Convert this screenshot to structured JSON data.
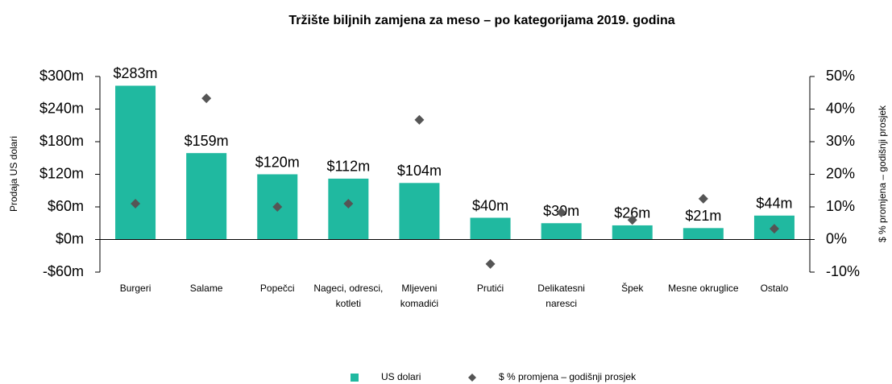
{
  "chart_data": {
    "type": "bar",
    "title": "Tržište biljnih zamjena za meso – po kategorijama 2019. godina",
    "ylabel": "Prodaja US dolari",
    "y2label": "$ % promjena – godišnji prosjek",
    "categories": [
      "Burgeri",
      "Salame",
      "Popečci",
      "Nageci, odresci, kotleti",
      "Mljeveni komadići",
      "Prutići",
      "Delikatesni naresci",
      "Špek",
      "Mesne okruglice",
      "Ostalo"
    ],
    "series": [
      {
        "name": "US dolari",
        "color": "#20b9a0",
        "values": [
          283,
          159,
          120,
          112,
          104,
          40,
          30,
          26,
          21,
          44
        ],
        "value_labels": [
          "$283m",
          "$159m",
          "$120m",
          "$112m",
          "$104m",
          "$40m",
          "$30m",
          "$26m",
          "$21m",
          "$44m"
        ]
      },
      {
        "name": "$ % promjena – godišnji prosjek",
        "color": "#555555",
        "axis": "y2",
        "marker": "diamond",
        "values": [
          11,
          43.3,
          10,
          11,
          36.7,
          -7.5,
          8.3,
          6,
          12.5,
          3.3
        ]
      }
    ],
    "ylim": [
      -60,
      300
    ],
    "yticks": [
      {
        "value": -60,
        "label": "-$60m"
      },
      {
        "value": 0,
        "label": "$0m"
      },
      {
        "value": 60,
        "label": "$60m"
      },
      {
        "value": 120,
        "label": "$120m"
      },
      {
        "value": 180,
        "label": "$180m"
      },
      {
        "value": 240,
        "label": "$240m"
      },
      {
        "value": 300,
        "label": "$300m"
      }
    ],
    "y2lim": [
      -10,
      50
    ],
    "y2ticks": [
      {
        "value": -10,
        "label": "-10%"
      },
      {
        "value": 0,
        "label": "0%"
      },
      {
        "value": 10,
        "label": "10%"
      },
      {
        "value": 20,
        "label": "20%"
      },
      {
        "value": 30,
        "label": "30%"
      },
      {
        "value": 40,
        "label": "40%"
      },
      {
        "value": 50,
        "label": "50%"
      }
    ],
    "legend": "bottom"
  }
}
